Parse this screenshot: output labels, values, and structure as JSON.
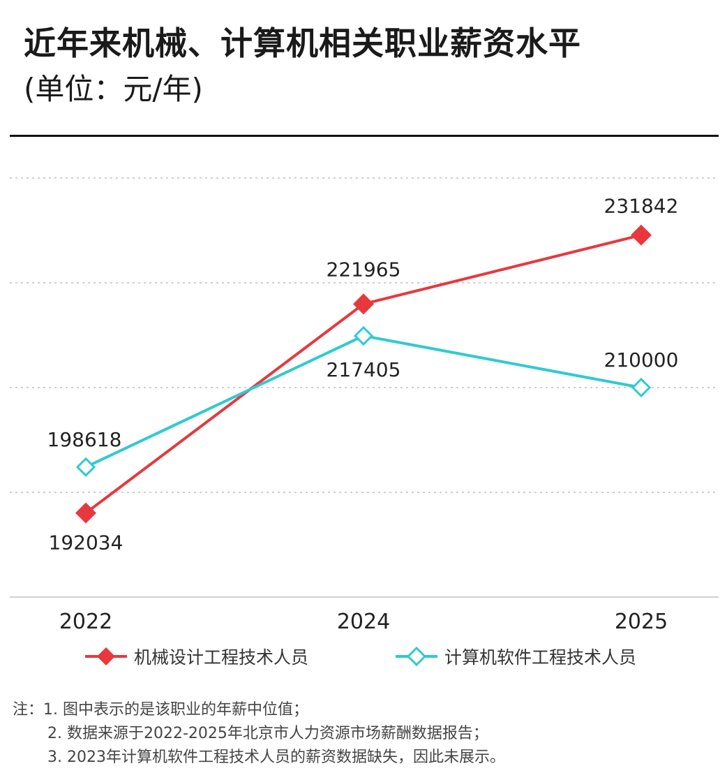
{
  "title": "近年来机械、计算机相关职业薪资水平",
  "subtitle": "(单位：元/年)",
  "chart_data": {
    "type": "line",
    "categories": [
      "2022",
      "2024",
      "2025"
    ],
    "ylim": [
      180000,
      240000
    ],
    "grid": true,
    "legend_position": "bottom",
    "series": [
      {
        "name": "机械设计工程技术人员",
        "values": [
          192034,
          221965,
          231842
        ],
        "color": "#e8383d",
        "marker": "filled-diamond"
      },
      {
        "name": "计算机软件工程技术人员",
        "values": [
          198618,
          217405,
          210000
        ],
        "color": "#2ecbd0",
        "marker": "hollow-diamond"
      }
    ]
  },
  "legend": {
    "mech_label": "机械设计工程技术人员",
    "cs_label": "计算机软件工程技术人员"
  },
  "notes": [
    "注：1. 图中表示的是该职业的年薪中位值；",
    "2. 数据来源于2022-2025年北京市人力资源市场薪酬数据报告；",
    "3. 2023年计算机软件工程技术人员的薪资数据缺失，因此未展示。"
  ]
}
